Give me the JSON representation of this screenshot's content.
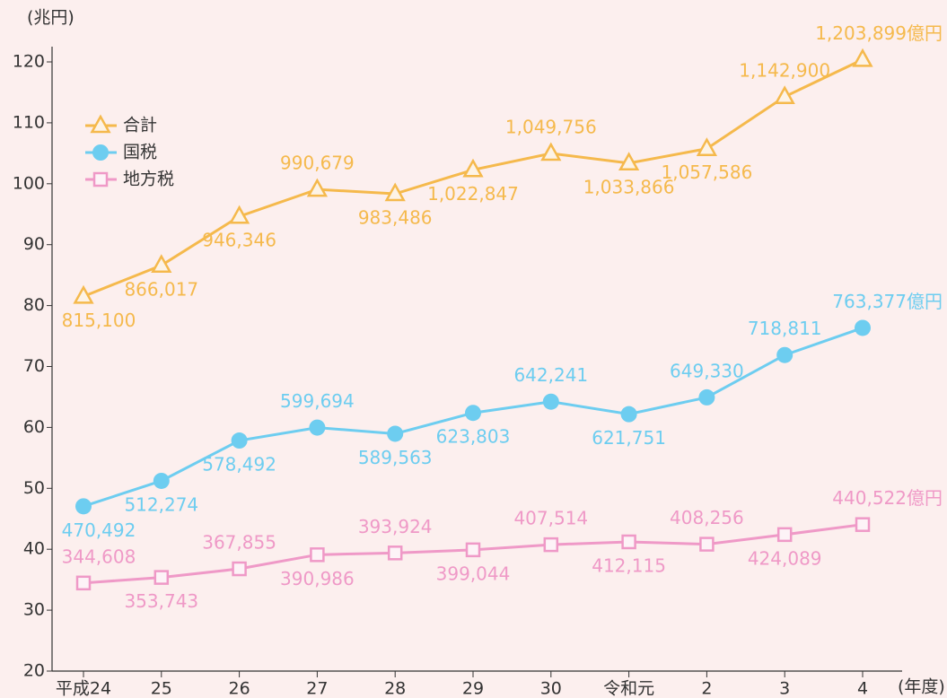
{
  "chart_data": {
    "type": "line",
    "y_axis_label": "(兆円)",
    "x_axis_label": "(年度)",
    "categories": [
      "平成24",
      "25",
      "26",
      "27",
      "28",
      "29",
      "30",
      "令和元",
      "2",
      "3",
      "4"
    ],
    "ylim": [
      20,
      120
    ],
    "yticks": [
      20,
      30,
      40,
      50,
      60,
      70,
      80,
      90,
      100,
      110,
      120
    ],
    "legend": "upper left",
    "series": [
      {
        "name": "合計",
        "color": "#f5b94c",
        "marker": "triangle",
        "values": [
          81.51,
          86.6017,
          94.6346,
          99.0679,
          98.3486,
          102.2847,
          104.9756,
          103.3866,
          105.7586,
          114.29,
          120.3899
        ],
        "value_labels": [
          "815,100",
          "866,017",
          "946,346",
          "990,679",
          "983,486",
          "1,022,847",
          "1,049,756",
          "1,033,866",
          "1,057,586",
          "1,142,900",
          "1,203,899億円"
        ]
      },
      {
        "name": "国税",
        "color": "#6dcdf0",
        "marker": "circle",
        "values": [
          47.0492,
          51.2274,
          57.8492,
          59.9694,
          58.9563,
          62.3803,
          64.2241,
          62.1751,
          64.933,
          71.8811,
          76.3377
        ],
        "value_labels": [
          "470,492",
          "512,274",
          "578,492",
          "599,694",
          "589,563",
          "623,803",
          "642,241",
          "621,751",
          "649,330",
          "718,811",
          "763,377億円"
        ]
      },
      {
        "name": "地方税",
        "color": "#ef99c7",
        "marker": "square",
        "values": [
          34.4608,
          35.3743,
          36.7855,
          39.0986,
          39.3924,
          39.9044,
          40.7514,
          41.2115,
          40.8256,
          42.4089,
          44.0522
        ],
        "value_labels": [
          "344,608",
          "353,743",
          "367,855",
          "390,986",
          "393,924",
          "399,044",
          "407,514",
          "412,115",
          "408,256",
          "424,089",
          "440,522億円"
        ]
      }
    ]
  }
}
